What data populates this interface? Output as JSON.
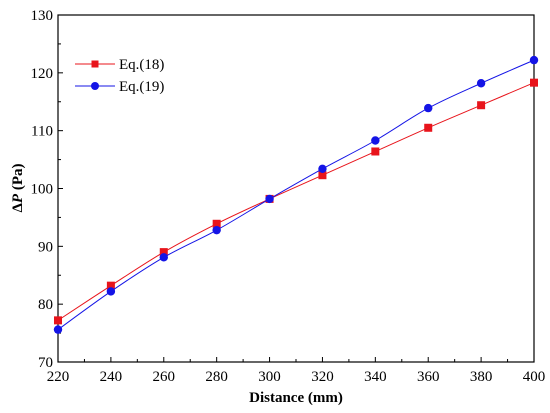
{
  "chart_data": {
    "type": "line",
    "title": "",
    "xlabel": "Distance (mm)",
    "ylabel_prefix": "Δ",
    "ylabel_var": "P",
    "ylabel_unit": " (Pa)",
    "xlim": [
      220,
      400
    ],
    "ylim": [
      70,
      130
    ],
    "xticks": [
      220,
      240,
      260,
      280,
      300,
      320,
      340,
      360,
      380,
      400
    ],
    "yticks": [
      70,
      80,
      90,
      100,
      110,
      120,
      130
    ],
    "grid": false,
    "legend_position": "top-left",
    "x": [
      220,
      240,
      260,
      280,
      300,
      320,
      340,
      360,
      380,
      400
    ],
    "series": [
      {
        "name": "Eq.(18)",
        "color": "#e8141b",
        "marker": "square",
        "values": [
          77.2,
          83.2,
          89.0,
          93.9,
          98.2,
          102.3,
          106.4,
          110.5,
          114.4,
          118.3
        ]
      },
      {
        "name": "Eq.(19)",
        "color": "#1414e6",
        "marker": "circle",
        "values": [
          75.6,
          82.2,
          88.1,
          92.8,
          98.2,
          103.4,
          108.3,
          113.9,
          118.2,
          122.2
        ]
      }
    ]
  }
}
